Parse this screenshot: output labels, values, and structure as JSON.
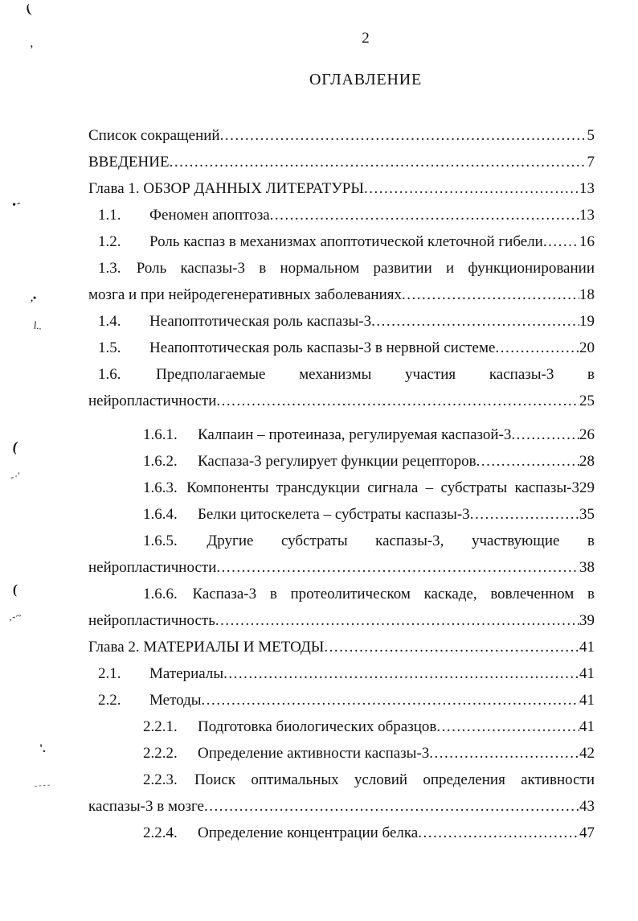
{
  "header": {
    "page_number": "2",
    "title": "ОГЛАВЛЕНИЕ"
  },
  "toc": {
    "entries": [
      {
        "num": "",
        "text": "Список сокращений",
        "page": "5"
      },
      {
        "num": "",
        "text": "ВВЕДЕНИЕ",
        "page": "7"
      },
      {
        "num": "",
        "text": "Глава 1. ОБЗОР ДАННЫХ ЛИТЕРАТУРЫ",
        "page": "13"
      },
      {
        "num": "1.1.",
        "text": "Феномен апоптоза",
        "page": "13"
      },
      {
        "num": "1.2.",
        "text": "Роль каспаз в механизмах апоптотической клеточной гибели",
        "page": "16"
      },
      {
        "num": "1.3.",
        "text": "Роль каспазы-3 в нормальном развитии и функционировании",
        "text2": "мозга и при нейродегенеративных заболеваниях",
        "page": "18"
      },
      {
        "num": "1.4.",
        "text": "Неапоптотическая роль каспазы-3",
        "page": "19"
      },
      {
        "num": "1.5.",
        "text": "Неапоптотическая роль каспазы-3 в нервной системе",
        "page": "20"
      },
      {
        "num": "1.6.",
        "text": "Предполагаемые механизмы участия каспазы-3 в",
        "text2": "нейропластичности",
        "page": "25"
      },
      {
        "num": "1.6.1.",
        "text": "Калпаин – протеиназа, регулируемая каспазой-3",
        "page": "26"
      },
      {
        "num": "1.6.2.",
        "text": "Каспаза-3 регулирует функции рецепторов",
        "page": "28"
      },
      {
        "num": "1.6.3.",
        "text": "Компоненты трансдукции сигнала – субстраты каспазы-3",
        "page": "29"
      },
      {
        "num": "1.6.4.",
        "text": "Белки цитоскелета – субстраты каспазы-3",
        "page": "35"
      },
      {
        "num": "1.6.5.",
        "text": "Другие субстраты каспазы-3, участвующие в",
        "text2": "нейропластичности",
        "page": "38"
      },
      {
        "num": "1.6.6.",
        "text": "Каспаза-3 в протеолитическом каскаде, вовлеченном в",
        "text2": "нейропластичность",
        "page": "39"
      },
      {
        "num": "",
        "text": "Глава 2. МАТЕРИАЛЫ И МЕТОДЫ",
        "page": "41"
      },
      {
        "num": "2.1.",
        "text": "Материалы",
        "page": "41"
      },
      {
        "num": "2.2.",
        "text": "Методы",
        "page": "41"
      },
      {
        "num": "2.2.1.",
        "text": "Подготовка биологических образцов",
        "page": "41"
      },
      {
        "num": "2.2.2.",
        "text": "Определение активности каспазы-3",
        "page": "42"
      },
      {
        "num": "2.2.3.",
        "text": "Поиск оптимальных условий определения активности",
        "text2": "каспазы-3 в мозге",
        "page": "43"
      },
      {
        "num": "2.2.4.",
        "text": "Определение концентрации белка",
        "page": "47"
      }
    ]
  },
  "artifacts": {
    "marks": [
      "(",
      ",",
      "•-",
      ",•",
      "l..",
      "(",
      "-·'",
      "(",
      ",-~",
      "'.",
      "----"
    ]
  },
  "colors": {
    "text": "#121212",
    "background": "#ffffff"
  }
}
